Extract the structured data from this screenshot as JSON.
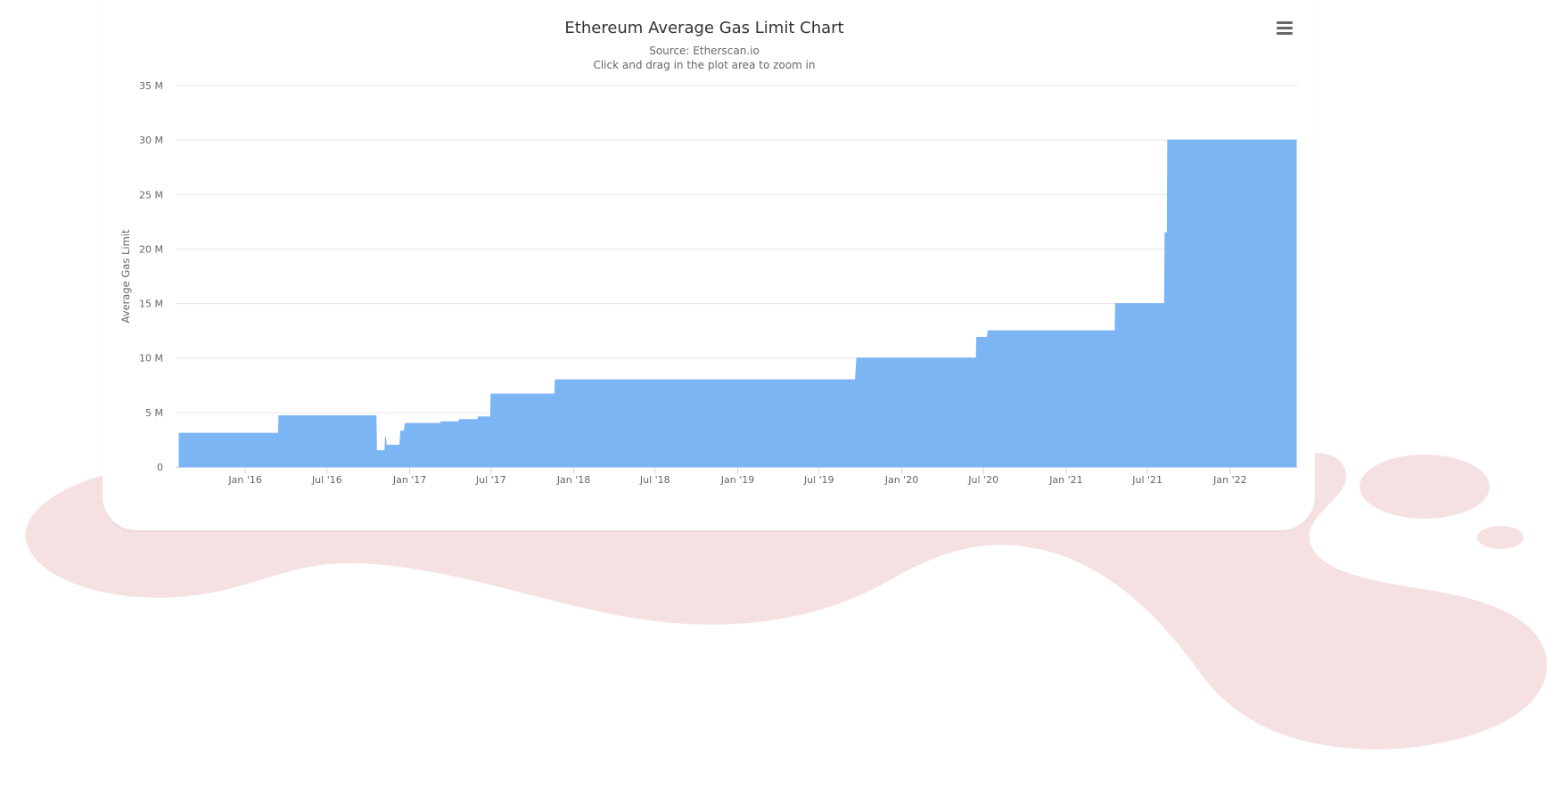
{
  "colors": {
    "series": "#7cb5f4",
    "grid": "#e6e6e6",
    "blob": "#f6e1e2"
  },
  "icons": {
    "menu": "hamburger-menu-icon"
  },
  "chart_data": {
    "type": "area",
    "title": "Ethereum Average Gas Limit Chart",
    "subtitle_source": "Source: Etherscan.io",
    "subtitle_hint": "Click and drag in the plot area to zoom in",
    "xlabel": "",
    "ylabel": "Average Gas Limit",
    "x_type": "date",
    "xlim": [
      "2015-07-30",
      "2022-06-01"
    ],
    "ylim": [
      0,
      35000000
    ],
    "y_ticks": [
      {
        "value": 0,
        "label": "0"
      },
      {
        "value": 5000000,
        "label": "5 M"
      },
      {
        "value": 10000000,
        "label": "10 M"
      },
      {
        "value": 15000000,
        "label": "15 M"
      },
      {
        "value": 20000000,
        "label": "20 M"
      },
      {
        "value": 25000000,
        "label": "25 M"
      },
      {
        "value": 30000000,
        "label": "30 M"
      },
      {
        "value": 35000000,
        "label": "35 M"
      }
    ],
    "x_ticks": [
      {
        "date": "2016-01-01",
        "label": "Jan '16"
      },
      {
        "date": "2016-07-01",
        "label": "Jul '16"
      },
      {
        "date": "2017-01-01",
        "label": "Jan '17"
      },
      {
        "date": "2017-07-01",
        "label": "Jul '17"
      },
      {
        "date": "2018-01-01",
        "label": "Jan '18"
      },
      {
        "date": "2018-07-01",
        "label": "Jul '18"
      },
      {
        "date": "2019-01-01",
        "label": "Jan '19"
      },
      {
        "date": "2019-07-01",
        "label": "Jul '19"
      },
      {
        "date": "2020-01-01",
        "label": "Jan '20"
      },
      {
        "date": "2020-07-01",
        "label": "Jul '20"
      },
      {
        "date": "2021-01-01",
        "label": "Jan '21"
      },
      {
        "date": "2021-07-01",
        "label": "Jul '21"
      },
      {
        "date": "2022-01-01",
        "label": "Jan '22"
      }
    ],
    "grid": true,
    "legend": "none",
    "series": [
      {
        "points": [
          [
            "2015-08-07",
            3100000
          ],
          [
            "2016-03-15",
            3100000
          ],
          [
            "2016-03-16",
            4700000
          ],
          [
            "2016-07-01",
            4700000
          ],
          [
            "2016-07-02",
            4400000
          ],
          [
            "2016-07-03",
            4700000
          ],
          [
            "2016-10-18",
            4700000
          ],
          [
            "2016-10-19",
            1500000
          ],
          [
            "2016-11-05",
            1500000
          ],
          [
            "2016-11-06",
            350000
          ],
          [
            "2016-11-08",
            2800000
          ],
          [
            "2016-11-10",
            2000000
          ],
          [
            "2016-12-10",
            2000000
          ],
          [
            "2016-12-12",
            3300000
          ],
          [
            "2016-12-20",
            3300000
          ],
          [
            "2016-12-22",
            4000000
          ],
          [
            "2017-03-10",
            4000000
          ],
          [
            "2017-03-12",
            4150000
          ],
          [
            "2017-04-20",
            4150000
          ],
          [
            "2017-04-22",
            4350000
          ],
          [
            "2017-06-01",
            4350000
          ],
          [
            "2017-06-03",
            4600000
          ],
          [
            "2017-06-30",
            4600000
          ],
          [
            "2017-07-01",
            6700000
          ],
          [
            "2017-11-20",
            6700000
          ],
          [
            "2017-11-21",
            8000000
          ],
          [
            "2019-09-20",
            8000000
          ],
          [
            "2019-09-23",
            10000000
          ],
          [
            "2020-06-15",
            10000000
          ],
          [
            "2020-06-16",
            11900000
          ],
          [
            "2020-07-10",
            11900000
          ],
          [
            "2020-07-11",
            12500000
          ],
          [
            "2021-04-20",
            12500000
          ],
          [
            "2021-04-21",
            15000000
          ],
          [
            "2021-08-08",
            15000000
          ],
          [
            "2021-08-09",
            21500000
          ],
          [
            "2021-08-14",
            21500000
          ],
          [
            "2021-08-15",
            30000000
          ],
          [
            "2022-05-28",
            30000000
          ]
        ]
      }
    ]
  }
}
